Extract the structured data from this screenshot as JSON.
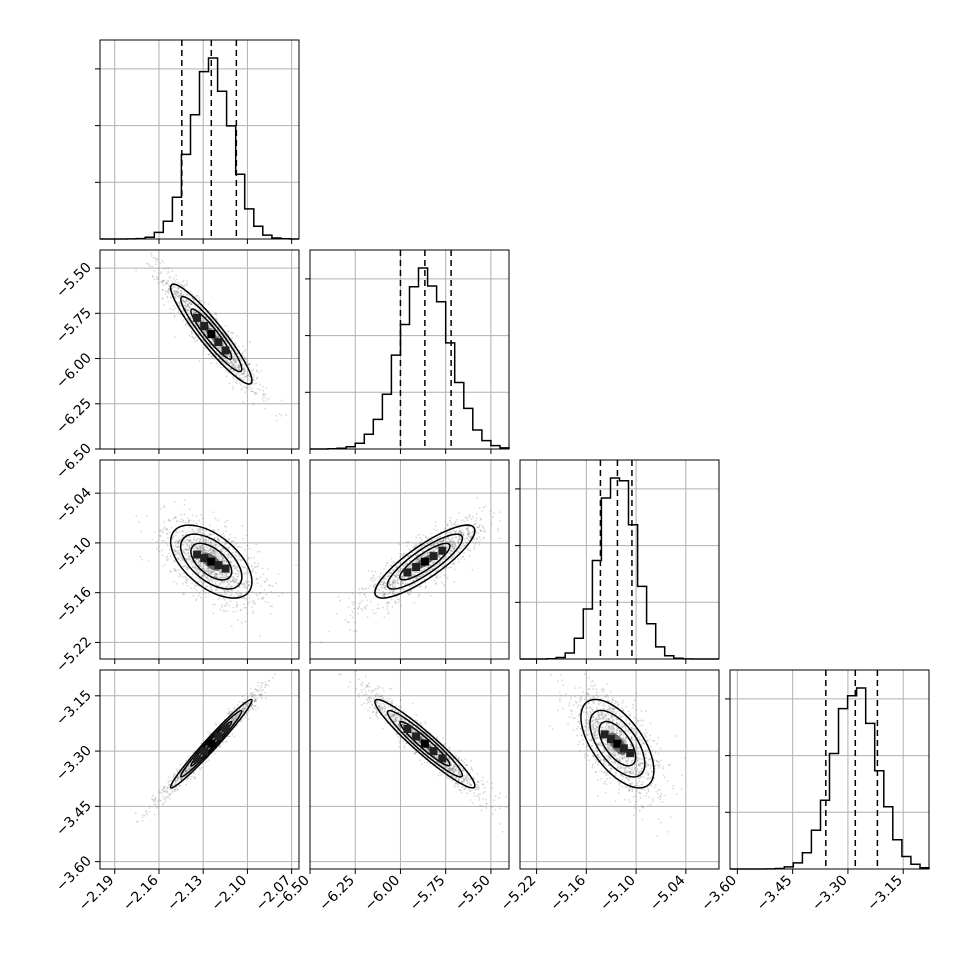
{
  "chart_data": {
    "type": "corner",
    "colors": {
      "line": "#000000",
      "grid": "#b0b0b0",
      "points": "#777777"
    },
    "grid": true,
    "params": [
      {
        "range": [
          -2.2,
          -2.065
        ],
        "ticks": [
          -2.19,
          -2.16,
          -2.13,
          -2.1,
          -2.07
        ],
        "tick_labels": [
          "−2.19",
          "−2.16",
          "−2.13",
          "−2.10",
          "−2.07"
        ],
        "center": -2.1245,
        "sigma": 0.0138,
        "quantiles": [
          -2.1445,
          -2.1245,
          -2.1075
        ]
      },
      {
        "range": [
          -6.5,
          -5.4
        ],
        "ticks": [
          -6.5,
          -6.25,
          -6.0,
          -5.75,
          -5.5
        ],
        "tick_labels": [
          "−6.50",
          "−6.25",
          "−6.00",
          "−5.75",
          "−5.50"
        ],
        "center": -5.865,
        "sigma": 0.138,
        "quantiles": [
          -6.0,
          -5.865,
          -5.72
        ]
      },
      {
        "range": [
          -5.24,
          -5.0
        ],
        "ticks": [
          -5.22,
          -5.16,
          -5.1,
          -5.04
        ],
        "tick_labels": [
          "−5.22",
          "−5.16",
          "−5.10",
          "−5.04"
        ],
        "center": -5.1225,
        "sigma": 0.022,
        "quantiles": [
          -5.143,
          -5.1225,
          -5.105
        ]
      },
      {
        "range": [
          -3.62,
          -3.08
        ],
        "ticks": [
          -3.6,
          -3.45,
          -3.3,
          -3.15
        ],
        "tick_labels": [
          "−3.60",
          "−3.45",
          "−3.30",
          "−3.15"
        ],
        "center": -3.28,
        "sigma": 0.06,
        "quantiles": [
          -3.36,
          -3.28,
          -3.22
        ]
      }
    ],
    "correlations": {
      "1-0": -0.93,
      "2-0": -0.55,
      "2-1": 0.85,
      "3-0": 0.98,
      "3-1": -0.95,
      "3-2": -0.6
    }
  }
}
